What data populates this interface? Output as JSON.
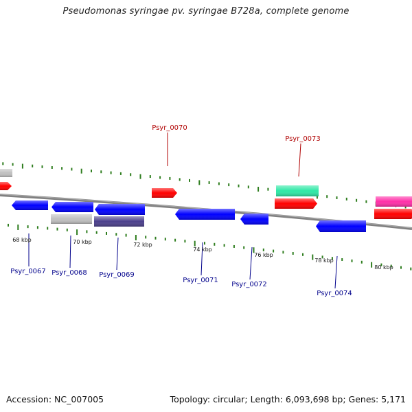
{
  "title": "Pseudomonas syringae pv. syringae B728a, complete genome",
  "footer": {
    "accession": "Accession: NC_007005",
    "stats": "Topology: circular; Length: 6,093,698 bp; Genes: 5,171"
  },
  "colors": {
    "plus_label": "#b00000",
    "minus_label": "#00008b",
    "tick": "#2e7d1e",
    "backbone": "#808080"
  },
  "ticks": [
    "68 kbp",
    "70 kbp",
    "72 kbp",
    "74 kbp",
    "76 kbp",
    "78 kbp",
    "80 kbp"
  ],
  "genes_plus": [
    {
      "label": "Psyr_0070",
      "color": "#ff0000"
    },
    {
      "label": "Psyr_0073",
      "color": "#ff0000"
    }
  ],
  "genes_minus": [
    {
      "label": "Psyr_0067",
      "color": "#0000ff"
    },
    {
      "label": "Psyr_0068",
      "color": "#0000ff"
    },
    {
      "label": "Psyr_0069",
      "color": "#0000ff"
    },
    {
      "label": "Psyr_0071",
      "color": "#0000ff"
    },
    {
      "label": "Psyr_0072",
      "color": "#0000ff"
    },
    {
      "label": "Psyr_0074",
      "color": "#0000ff"
    }
  ],
  "features_other": [
    {
      "color": "#c0c0c0"
    },
    {
      "color": "#c0c0c0"
    },
    {
      "color": "#4b3f8c"
    },
    {
      "color": "#2ee8a6"
    },
    {
      "color": "#ff2fa8"
    }
  ]
}
